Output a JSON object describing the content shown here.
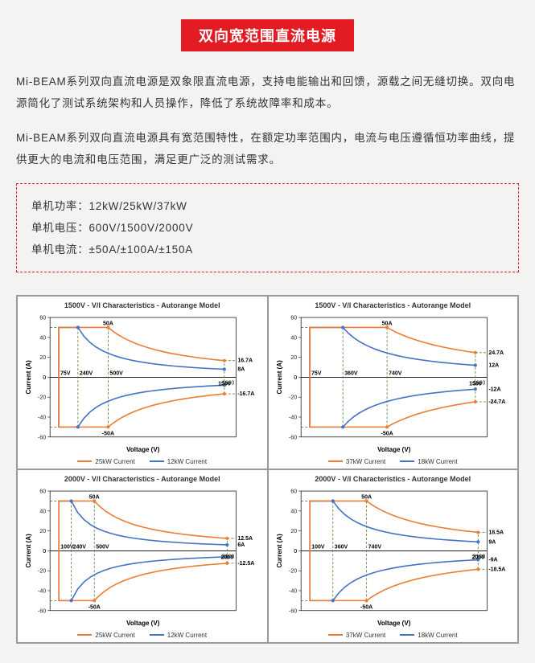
{
  "title": "双向宽范围直流电源",
  "para1": "Mi-BEAM系列双向直流电源是双象限直流电源，支持电能输出和回馈，源载之间无缝切换。双向电源简化了测试系统架构和人员操作，降低了系统故障率和成本。",
  "para2": "Mi-BEAM系列双向直流电源具有宽范围特性，在额定功率范围内，电流与电压遵循恒功率曲线，提供更大的电流和电压范围，满足更广泛的测试需求。",
  "specs": {
    "line1": "单机功率：12kW/25kW/37kW",
    "line2": "单机电压：600V/1500V/2000V",
    "line3": "单机电流：±50A/±100A/±150A"
  },
  "colors": {
    "orange": "#ed7d31",
    "blue": "#4472c4",
    "guide": "#548235",
    "grid": "#000000"
  },
  "common_axes": {
    "xlim": [
      0,
      1600
    ],
    "ylim": [
      -60,
      60
    ],
    "y_ticks": [
      -60,
      -40,
      -20,
      0,
      20,
      40,
      60
    ],
    "x_ticks_draw": [
      0,
      200,
      400,
      600,
      800,
      1000,
      1200,
      1400,
      1600
    ],
    "y_label": "Current (A)",
    "x_label": "Voltage (V)"
  },
  "charts": [
    {
      "title": "1500V - V/I Characteristics - Autorange Model",
      "legend": [
        "25kW Current",
        "12kW Current"
      ],
      "x_right_tick": "1500",
      "orange": {
        "peakA": "50A",
        "negPeakA": "-50A",
        "rightA_top": "16.7A",
        "rightA_bot": "-16.7A",
        "v_peak": 500,
        "v_end": 1500,
        "i_peak": 50,
        "i_end": 16.7
      },
      "blue": {
        "v_peak": 240,
        "v_end": 1500,
        "i_peak": 50,
        "i_end": 8,
        "rightA_top": "8A"
      },
      "guides_v": [
        75,
        240,
        500
      ],
      "guides_v_labels": [
        "75V",
        "240V",
        "500V"
      ],
      "right_second_tick": "1600"
    },
    {
      "title": "1500V - V/I Characteristics - Autorange Model",
      "legend": [
        "37kW Current",
        "18kW Current"
      ],
      "x_right_tick": "1500",
      "orange": {
        "peakA": "50A",
        "negPeakA": "-50A",
        "rightA_top": "24.7A",
        "rightA_bot": "-24.7A",
        "v_peak": 740,
        "v_end": 1500,
        "i_peak": 50,
        "i_end": 24.7
      },
      "blue": {
        "v_peak": 360,
        "v_end": 1500,
        "i_peak": 50,
        "i_end": 12,
        "rightA_top": "12A",
        "rightA_bot": "-12A"
      },
      "guides_v": [
        75,
        360,
        740
      ],
      "guides_v_labels": [
        "75V",
        "360V",
        "740V"
      ],
      "right_second_tick": "1600"
    },
    {
      "title": "2000V - V/I Characteristics - Autorange Model",
      "legend": [
        "25kW Current",
        "12kW Current"
      ],
      "x_right_tick": "2000",
      "orange": {
        "peakA": "50A",
        "negPeakA": "-50A",
        "rightA_top": "12.5A",
        "rightA_bot": "-12.5A",
        "v_peak": 500,
        "v_end": 2000,
        "i_peak": 50,
        "i_end": 12.5
      },
      "blue": {
        "v_peak": 240,
        "v_end": 2000,
        "i_peak": 50,
        "i_end": 6,
        "rightA_top": "6A"
      },
      "guides_v": [
        100,
        240,
        500
      ],
      "guides_v_labels": [
        "100V",
        "240V",
        "500V"
      ],
      "right_second_tick": "",
      "explicit_xlim": [
        0,
        2100
      ]
    },
    {
      "title": "2000V - V/I Characteristics - Autorange Model",
      "legend": [
        "37kW Current",
        "18kW Current"
      ],
      "x_right_tick": "2000",
      "orange": {
        "peakA": "50A",
        "negPeakA": "-50A",
        "rightA_top": "18.5A",
        "rightA_bot": "-18.5A",
        "v_peak": 740,
        "v_end": 2000,
        "i_peak": 50,
        "i_end": 18.5
      },
      "blue": {
        "v_peak": 360,
        "v_end": 2000,
        "i_peak": 50,
        "i_end": 9,
        "rightA_top": "9A",
        "rightA_bot": "-9A"
      },
      "guides_v": [
        100,
        360,
        740
      ],
      "guides_v_labels": [
        "100V",
        "360V",
        "740V"
      ],
      "right_second_tick": "",
      "explicit_xlim": [
        0,
        2100
      ]
    }
  ]
}
